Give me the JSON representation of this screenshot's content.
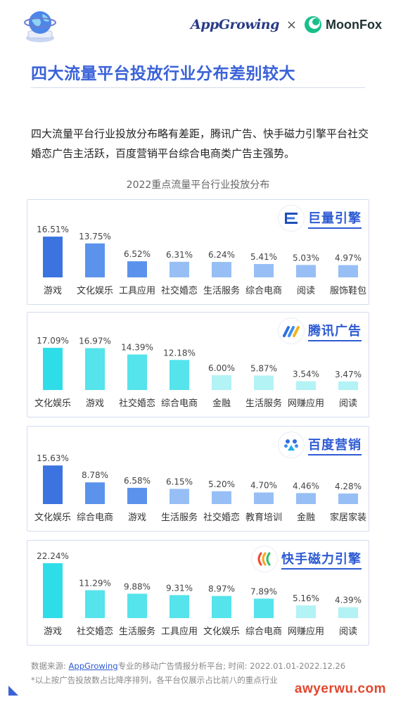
{
  "header": {
    "brand_left": "AppGrowing",
    "brand_sep": "×",
    "brand_right": "MoonFox"
  },
  "title": "四大流量平台投放行业分布差别较大",
  "intro": "四大流量平台行业投放分布略有差距，腾讯广告、快手磁力引擎平台社交婚恋广告主活跃，百度营销平台综合电商类广告主强势。",
  "chart_data": [
    {
      "type": "bar",
      "title": "2022重点流量平台行业投放分布",
      "platform": "巨量引擎",
      "categories": [
        "游戏",
        "文化娱乐",
        "工具应用",
        "社交婚恋",
        "生活服务",
        "综合电商",
        "阅读",
        "服饰鞋包"
      ],
      "values": [
        16.51,
        13.75,
        6.52,
        6.31,
        6.24,
        5.41,
        5.03,
        4.97
      ],
      "value_labels": [
        "16.51%",
        "13.75%",
        "6.52%",
        "6.31%",
        "6.24%",
        "5.41%",
        "5.03%",
        "4.97%"
      ],
      "colors": {
        "top": "#3b73e0",
        "mid": "#5b93ec",
        "low": "#97bff5"
      }
    },
    {
      "type": "bar",
      "platform": "腾讯广告",
      "categories": [
        "文化娱乐",
        "游戏",
        "社交婚恋",
        "综合电商",
        "金融",
        "生活服务",
        "网赚应用",
        "阅读"
      ],
      "values": [
        17.09,
        16.97,
        14.39,
        12.18,
        6.0,
        5.87,
        3.54,
        3.47
      ],
      "value_labels": [
        "17.09%",
        "16.97%",
        "14.39%",
        "12.18%",
        "6.00%",
        "5.87%",
        "3.54%",
        "3.47%"
      ],
      "colors": {
        "top": "#2fdde8",
        "mid": "#55e3ec",
        "low": "#b3f2f5"
      }
    },
    {
      "type": "bar",
      "platform": "百度营销",
      "categories": [
        "文化娱乐",
        "综合电商",
        "游戏",
        "生活服务",
        "社交婚恋",
        "教育培训",
        "金融",
        "家居家装"
      ],
      "values": [
        15.63,
        8.78,
        6.58,
        6.15,
        5.2,
        4.7,
        4.46,
        4.28
      ],
      "value_labels": [
        "15.63%",
        "8.78%",
        "6.58%",
        "6.15%",
        "5.20%",
        "4.70%",
        "4.46%",
        "4.28%"
      ],
      "colors": {
        "top": "#3b73e0",
        "mid": "#5b93ec",
        "low": "#97bff5"
      }
    },
    {
      "type": "bar",
      "platform": "快手磁力引擎",
      "categories": [
        "游戏",
        "社交婚恋",
        "生活服务",
        "工具应用",
        "文化娱乐",
        "综合电商",
        "网赚应用",
        "阅读"
      ],
      "values": [
        22.24,
        11.29,
        9.88,
        9.31,
        8.97,
        7.89,
        5.16,
        4.39
      ],
      "value_labels": [
        "22.24%",
        "11.29%",
        "9.88%",
        "9.31%",
        "8.97%",
        "7.89%",
        "5.16%",
        "4.39%"
      ],
      "colors": {
        "top": "#2fdde8",
        "mid": "#55e3ec",
        "low": "#b3f2f5"
      }
    }
  ],
  "footer": {
    "source_prefix": "数据来源: ",
    "source_link": "AppGrowing",
    "source_suffix": "专业的移动广告情报分析平台; 时间: 2022.01.01-2022.12.26",
    "note": "*以上按广告投放数占比降序排列，各平台仅展示占比前八的重点行业"
  },
  "watermark": "awyerwu.com",
  "icons": [
    "globe-icon",
    "moonfox-icon",
    "juliang-icon",
    "tencent-ads-icon",
    "baidu-icon",
    "kuaishou-icon"
  ]
}
